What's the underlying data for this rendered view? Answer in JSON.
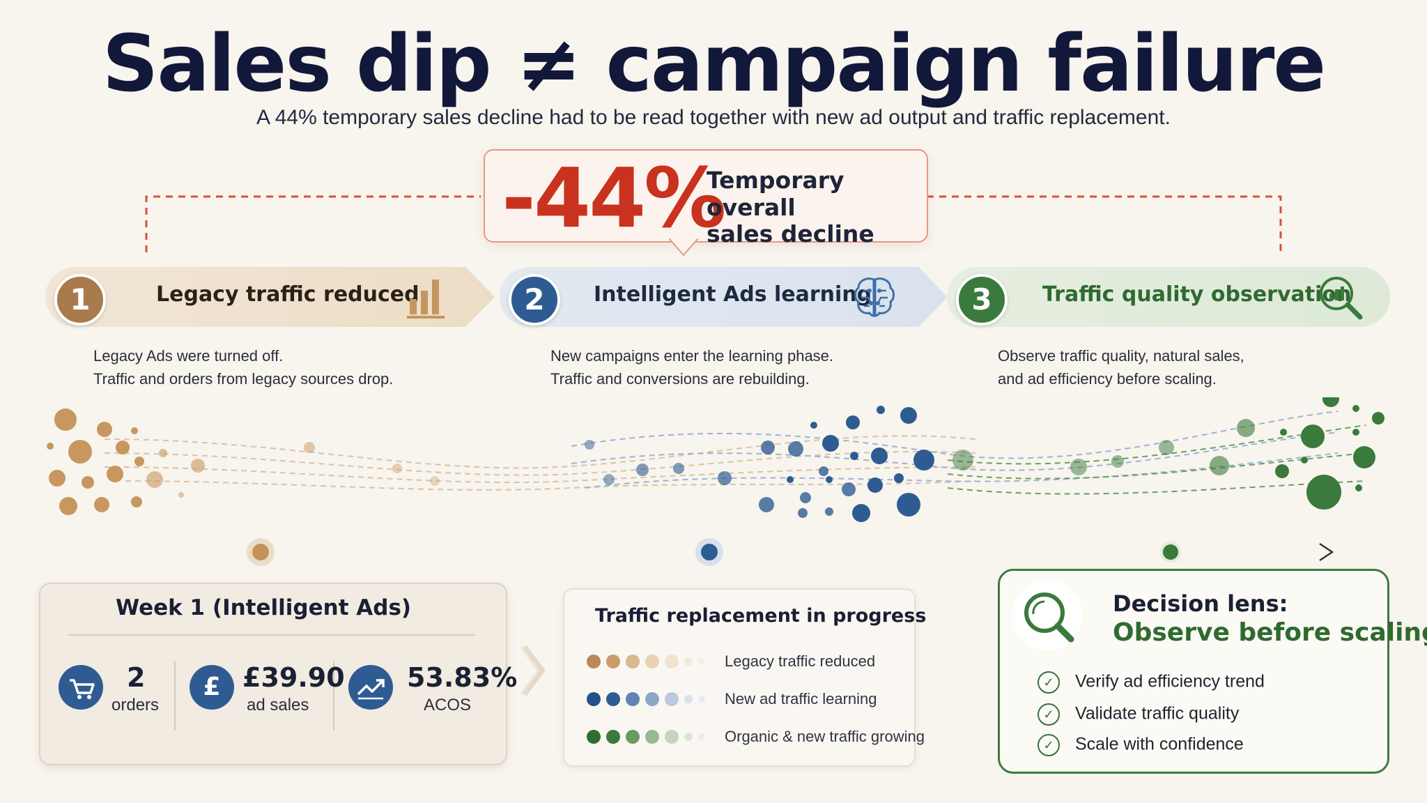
{
  "header": {
    "title": "Sales dip ≠ campaign failure",
    "subtitle": "A 44% temporary sales decline had to be read together with new ad output and traffic replacement."
  },
  "decline": {
    "value": "-44%",
    "label_line1": "Temporary overall",
    "label_line2": "sales decline"
  },
  "phases": [
    {
      "number": "1",
      "label": "Legacy traffic reduced",
      "icon": "bar-chart-icon",
      "desc_line1": "Legacy Ads were turned off.",
      "desc_line2": "Traffic and orders from legacy sources drop.",
      "color": "#a97a4c"
    },
    {
      "number": "2",
      "label": "Intelligent Ads learning",
      "icon": "brain-icon",
      "desc_line1": "New campaigns enter the learning phase.",
      "desc_line2": "Traffic and conversions are rebuilding.",
      "color": "#2e5c92"
    },
    {
      "number": "3",
      "label": "Traffic quality observation",
      "icon": "magnifier-chart-icon",
      "desc_line1": "Observe traffic quality, natural sales,",
      "desc_line2": "and ad efficiency before scaling.",
      "color": "#3a7a3c"
    }
  ],
  "week_card": {
    "title": "Week 1 (Intelligent Ads)",
    "metrics": [
      {
        "icon": "cart-icon",
        "value": "2",
        "label": "orders"
      },
      {
        "icon": "pound-icon",
        "value": "£39.90",
        "label": "ad sales"
      },
      {
        "icon": "trend-up-icon",
        "value": "53.83%",
        "label": "ACOS"
      }
    ]
  },
  "traffic_card": {
    "title": "Traffic replacement in progress",
    "rows": [
      {
        "label": "Legacy traffic reduced",
        "color": "#b98a58"
      },
      {
        "label": "New ad traffic learning",
        "color": "#2e5c92"
      },
      {
        "label": "Organic & new traffic growing",
        "color": "#3a7a3c"
      }
    ]
  },
  "decision_card": {
    "title_line1": "Decision lens:",
    "title_line2": "Observe before scaling",
    "checks": [
      "Verify ad efficiency trend",
      "Validate traffic quality",
      "Scale with confidence"
    ]
  },
  "colors": {
    "accent_red": "#c8321f",
    "phase1": "#a97a4c",
    "phase2": "#2e5c92",
    "phase3": "#3a7a3c"
  }
}
